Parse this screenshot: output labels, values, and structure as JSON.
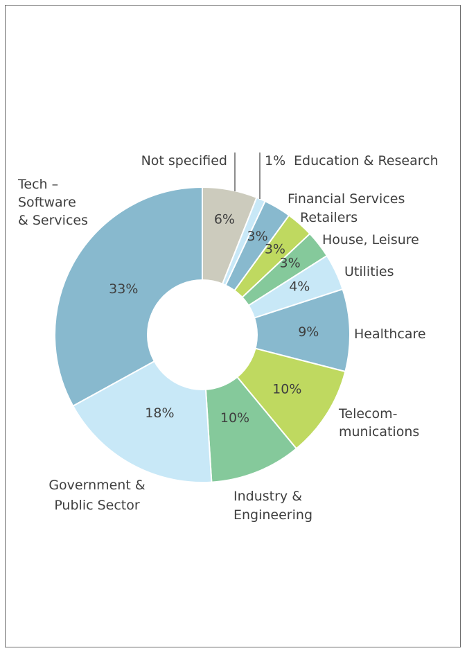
{
  "chart_data": {
    "type": "pie",
    "donut": true,
    "legend": "none",
    "categories": [
      "Not specified",
      "Education & Research",
      "Financial Services",
      "Retailers",
      "House, Leisure",
      "Utilities",
      "Healthcare",
      "Telecom- munications",
      "Industry & Engineering",
      "Government & Public Sector",
      "Tech – Software & Services"
    ],
    "values": [
      6,
      1,
      3,
      3,
      3,
      4,
      9,
      10,
      10,
      18,
      33
    ],
    "value_labels": [
      "6%",
      "1%",
      "3%",
      "3%",
      "3%",
      "4%",
      "9%",
      "10%",
      "10%",
      "18%",
      "33%"
    ],
    "colors": [
      "#cccbbd",
      "#c8e8f7",
      "#88b9ce",
      "#bfd960",
      "#85c99b",
      "#c8e8f7",
      "#88b9ce",
      "#bfd960",
      "#85c99b",
      "#c8e8f7",
      "#88b9ce"
    ],
    "labels_multiline": {
      "Tech – Software & Services": [
        "Tech –",
        "Software",
        "& Services"
      ],
      "Government & Public Sector": [
        "Government &",
        "Public Sector"
      ],
      "Industry & Engineering": [
        "Industry &",
        "Engineering"
      ],
      "Telecom- munications": [
        "Telecom-",
        "munications"
      ]
    }
  }
}
